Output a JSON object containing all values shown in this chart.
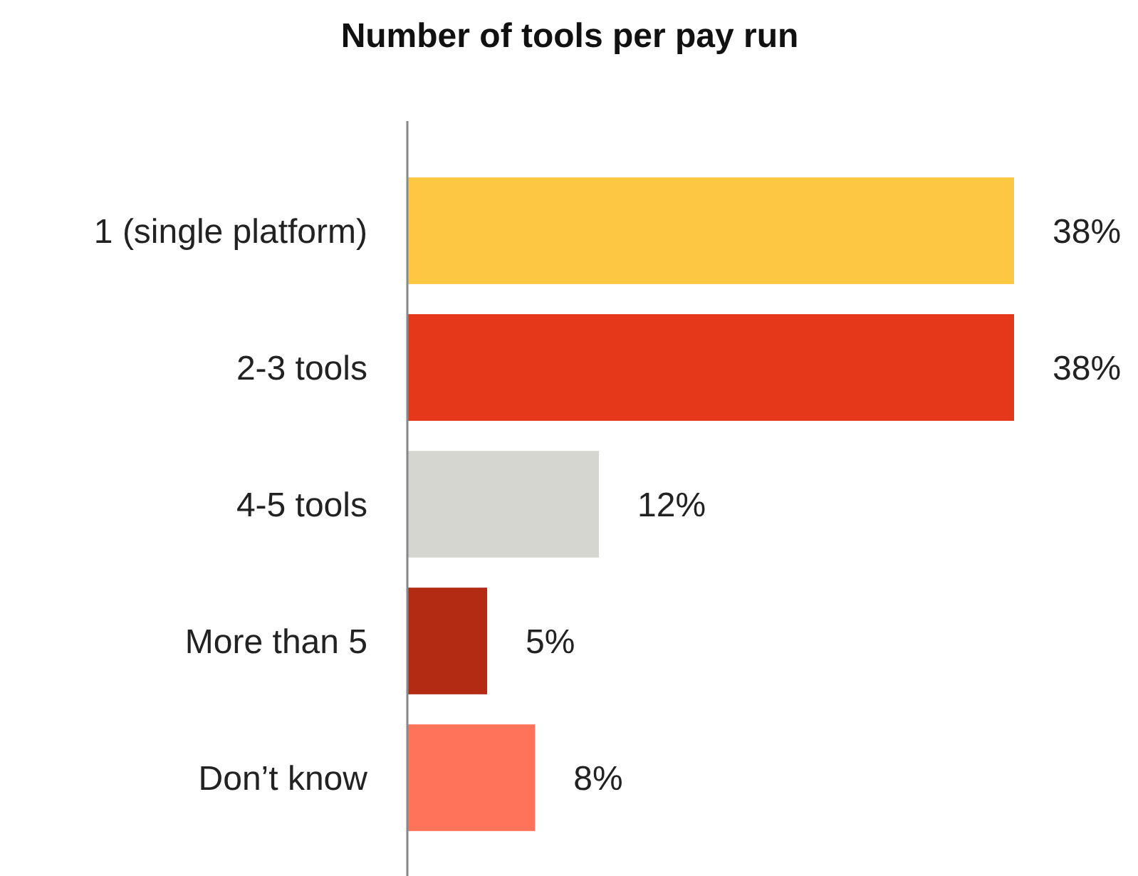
{
  "chart_data": {
    "type": "bar",
    "orientation": "horizontal",
    "title": "Number of tools per pay run",
    "categories": [
      "1 (single platform)",
      "2-3 tools",
      "4-5 tools",
      "More than 5",
      "Don’t know"
    ],
    "values": [
      38,
      38,
      12,
      5,
      8
    ],
    "colors": [
      "#fdc643",
      "#e5381a",
      "#d5d6d0",
      "#b32b12",
      "#fe735a"
    ],
    "value_labels": [
      "38%",
      "38%",
      "12%",
      "5%",
      "8%"
    ]
  }
}
